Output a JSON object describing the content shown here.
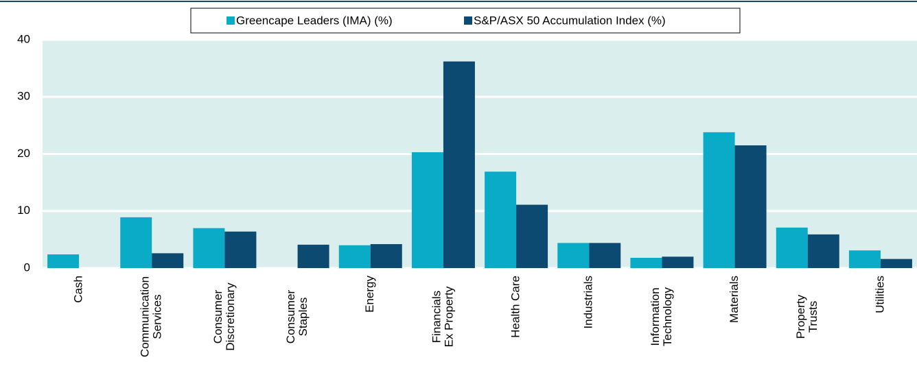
{
  "chart_data": {
    "type": "bar",
    "categories": [
      [
        "Cash"
      ],
      [
        "Communication",
        "Services"
      ],
      [
        "Consumer",
        "Discretionary"
      ],
      [
        "Consumer",
        "Staples"
      ],
      [
        "Energy"
      ],
      [
        "Financials",
        "Ex Property"
      ],
      [
        "Health Care"
      ],
      [
        "Industrials"
      ],
      [
        "Information",
        "Technology"
      ],
      [
        "Materials"
      ],
      [
        "Property",
        "Trusts"
      ],
      [
        "Utilities"
      ]
    ],
    "series": [
      {
        "name": "Greencape Leaders (IMA) (%)",
        "color": "#0aabc6",
        "values": [
          2.4,
          8.9,
          7.0,
          0,
          4.0,
          20.3,
          16.9,
          4.4,
          1.8,
          23.8,
          7.1,
          3.1
        ]
      },
      {
        "name": "S&P/ASX 50 Accumulation Index (%)",
        "color": "#0c4a72",
        "values": [
          0,
          2.6,
          6.4,
          4.1,
          4.2,
          36.2,
          11.1,
          4.4,
          2.0,
          21.5,
          5.9,
          1.6
        ]
      }
    ],
    "ylim": [
      0,
      40
    ],
    "yticks": [
      0,
      10,
      20,
      30,
      40
    ],
    "grid": true,
    "plot_background": "#daeeee"
  }
}
